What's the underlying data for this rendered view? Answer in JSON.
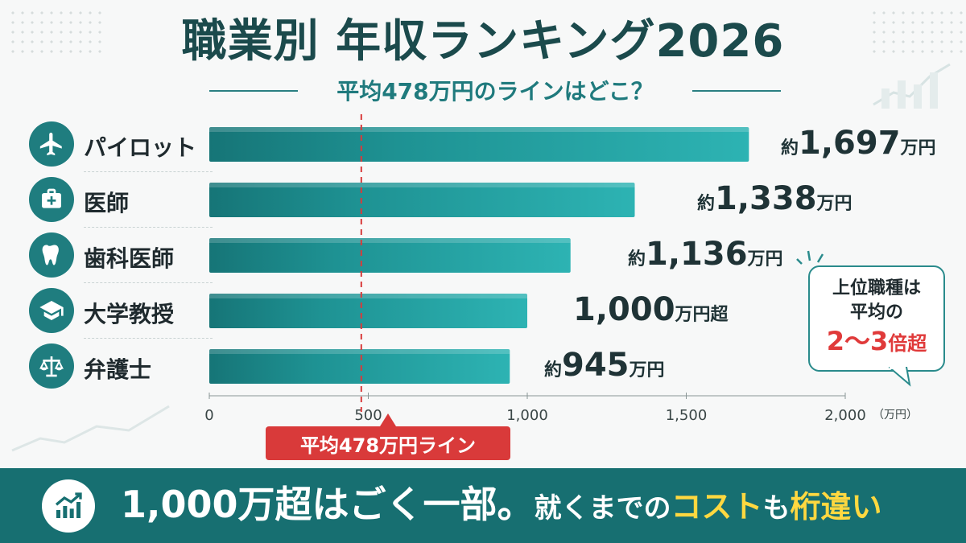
{
  "title": "職業別 年収ランキング2026",
  "subtitle": "平均478万円のラインはどこ？",
  "colors": {
    "bar": "#2aaeaf",
    "bar_dark": "#147375",
    "accent_red": "#d93a3a",
    "footer_bg": "#176f71",
    "highlight_yellow": "#ffd840"
  },
  "chart_data": {
    "type": "bar",
    "orientation": "horizontal",
    "categories": [
      "パイロット",
      "医師",
      "歯科医師",
      "大学教授",
      "弁護士"
    ],
    "icons": [
      "airplane-icon",
      "medical-kit-icon",
      "tooth-icon",
      "graduation-cap-icon",
      "scales-icon"
    ],
    "values": [
      1697,
      1338,
      1136,
      1000,
      945
    ],
    "value_labels": [
      {
        "prefix": "約",
        "number": "1,697",
        "suffix": "万円"
      },
      {
        "prefix": "約",
        "number": "1,338",
        "suffix": "万円"
      },
      {
        "prefix": "約",
        "number": "1,136",
        "suffix": "万円"
      },
      {
        "prefix": "",
        "number": "1,000",
        "suffix": "万円超"
      },
      {
        "prefix": "約",
        "number": "945",
        "suffix": "万円"
      }
    ],
    "xlim": [
      0,
      2000
    ],
    "xticks": [
      "0",
      "500",
      "1,000",
      "1,500",
      "2,000"
    ],
    "xunit": "（万円）",
    "reference_line": {
      "value": 478,
      "label": "平均478万円ライン"
    },
    "legend": "none",
    "grid": false
  },
  "callout": {
    "line1": "上位職種は",
    "line2": "平均の",
    "line3_main": "2〜3",
    "line3_suffix": "倍超"
  },
  "footer": {
    "icon": "trending-up-chart-icon",
    "text_big": "1,000万超はごく一部。",
    "text_mid1": "就くまでの",
    "text_hl1": "コスト",
    "text_mid2": "も",
    "text_hl2": "桁違い"
  }
}
